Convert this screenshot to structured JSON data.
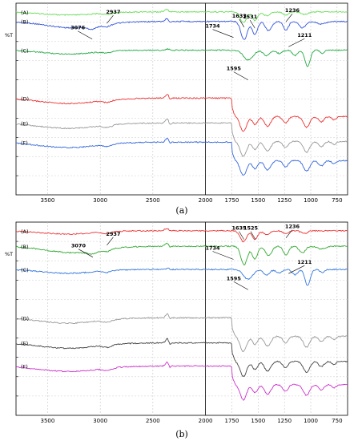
{
  "chart_data": [
    {
      "type": "line",
      "panel": "(a)",
      "ylabel": "%T",
      "xlim": [
        3800,
        650
      ],
      "xticks": [
        3500,
        3000,
        2500,
        2000,
        1750,
        1500,
        1250,
        1000,
        750
      ],
      "series": [
        {
          "name": "(A)",
          "color": "#66dd55",
          "offset": 0.02,
          "profile": 0
        },
        {
          "name": "(B)",
          "color": "#3355dd",
          "offset": 0.07,
          "profile": 1
        },
        {
          "name": "(C)",
          "color": "#22aa44",
          "offset": 0.22,
          "profile": 2
        },
        {
          "name": "(D)",
          "color": "#ee3333",
          "offset": 0.47,
          "profile": 3
        },
        {
          "name": "(E)",
          "color": "#999999",
          "offset": 0.6,
          "profile": 3
        },
        {
          "name": "(F)",
          "color": "#3366dd",
          "offset": 0.7,
          "profile": 3
        }
      ],
      "annotations": [
        {
          "text": "2937",
          "x": 2937
        },
        {
          "text": "3076",
          "x": 3076
        },
        {
          "text": "1734",
          "x": 1734
        },
        {
          "text": "1633",
          "x": 1633
        },
        {
          "text": "1531",
          "x": 1531
        },
        {
          "text": "1236",
          "x": 1236
        },
        {
          "text": "1211",
          "x": 1211
        },
        {
          "text": "1595",
          "x": 1595
        }
      ]
    },
    {
      "type": "line",
      "panel": "(b)",
      "ylabel": "%T",
      "xlim": [
        3800,
        650
      ],
      "xticks": [
        3500,
        3000,
        2500,
        2000,
        1750,
        1500,
        1250,
        1000,
        750
      ],
      "series": [
        {
          "name": "(A)",
          "color": "#ee3333",
          "offset": 0.02,
          "profile": 0
        },
        {
          "name": "(B)",
          "color": "#33aa33",
          "offset": 0.1,
          "profile": 1
        },
        {
          "name": "(C)",
          "color": "#3377dd",
          "offset": 0.22,
          "profile": 2
        },
        {
          "name": "(D)",
          "color": "#999999",
          "offset": 0.47,
          "profile": 3
        },
        {
          "name": "(E)",
          "color": "#444444",
          "offset": 0.6,
          "profile": 3
        },
        {
          "name": "(F)",
          "color": "#cc33cc",
          "offset": 0.72,
          "profile": 3
        }
      ],
      "annotations": [
        {
          "text": "3070",
          "x": 3070
        },
        {
          "text": "2937",
          "x": 2937
        },
        {
          "text": "1734",
          "x": 1734
        },
        {
          "text": "1635",
          "x": 1635
        },
        {
          "text": "1525",
          "x": 1525
        },
        {
          "text": "1236",
          "x": 1236
        },
        {
          "text": "1211",
          "x": 1211
        },
        {
          "text": "1595",
          "x": 1595
        }
      ]
    }
  ]
}
